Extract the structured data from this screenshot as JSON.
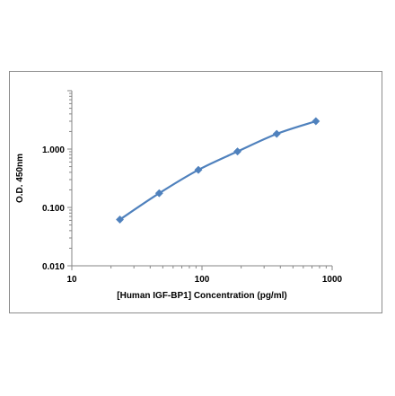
{
  "chart_data": {
    "type": "scatter",
    "title": "",
    "xlabel": "[Human IGF-BP1] Concentration (pg/ml)",
    "ylabel": "O.D. 450nm",
    "xscale": "log",
    "yscale": "log",
    "xlim": [
      10,
      1000
    ],
    "ylim": [
      0.01,
      10
    ],
    "x_ticks": [
      "10",
      "100",
      "1000"
    ],
    "y_ticks": [
      "0.010",
      "0.100",
      "1.000"
    ],
    "grid": false,
    "legend": "none",
    "series": [
      {
        "x": [
          23.4,
          46.9,
          93.8,
          187.5,
          375,
          750
        ],
        "y": [
          0.062,
          0.175,
          0.44,
          0.91,
          1.82,
          3.0
        ],
        "color": "#4f81bd",
        "marker": "diamond",
        "line": "smooth"
      }
    ]
  }
}
